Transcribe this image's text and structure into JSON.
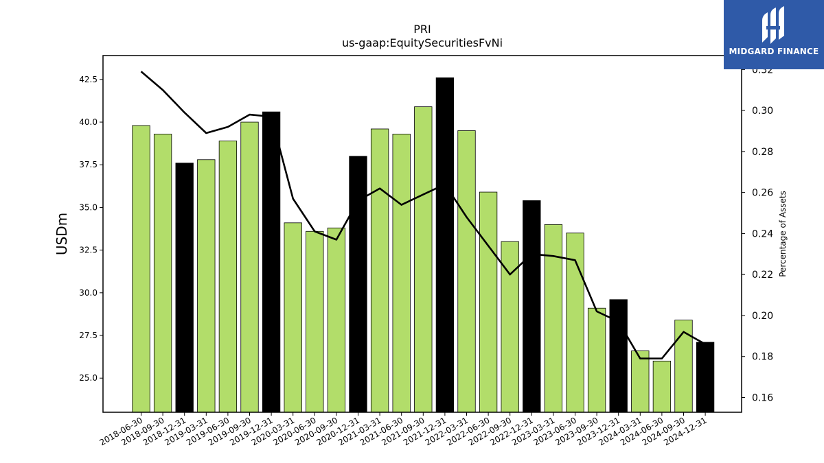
{
  "brand": {
    "name": "MIDGARD FINANCE",
    "icon": "midgard-logo-icon",
    "background": "#2f5aa8"
  },
  "chart_data": {
    "type": "bar",
    "title": "PRI",
    "subtitle": "us-gaap:EquitySecuritiesFvNi",
    "ylabel": "USDm",
    "ylabel_right": "Percentage of Assets",
    "ylim": [
      23.0,
      43.9
    ],
    "ylim_right": [
      0.1528,
      0.3268
    ],
    "yticks": [
      "25.0",
      "27.5",
      "30.0",
      "32.5",
      "35.0",
      "37.5",
      "40.0",
      "42.5"
    ],
    "yticks_right": [
      "0.16",
      "0.18",
      "0.20",
      "0.22",
      "0.24",
      "0.26",
      "0.28",
      "0.30",
      "0.32"
    ],
    "categories": [
      "2018-06-30",
      "2018-09-30",
      "2018-12-31",
      "2019-03-31",
      "2019-06-30",
      "2019-09-30",
      "2019-12-31",
      "2020-03-31",
      "2020-06-30",
      "2020-09-30",
      "2020-12-31",
      "2021-03-31",
      "2021-06-30",
      "2021-09-30",
      "2021-12-31",
      "2022-03-31",
      "2022-06-30",
      "2022-09-30",
      "2022-12-31",
      "2023-03-31",
      "2023-06-30",
      "2023-09-30",
      "2023-12-31",
      "2024-03-31",
      "2024-06-30",
      "2024-09-30",
      "2024-12-31"
    ],
    "values": [
      39.8,
      39.3,
      37.6,
      37.8,
      38.9,
      40.0,
      40.6,
      34.1,
      33.6,
      33.8,
      38.0,
      39.6,
      39.3,
      40.9,
      42.6,
      39.5,
      35.9,
      33.0,
      35.4,
      34.0,
      33.5,
      29.1,
      29.6,
      26.6,
      26.0,
      28.4,
      27.1
    ],
    "highlight": [
      false,
      false,
      true,
      false,
      false,
      false,
      true,
      false,
      false,
      false,
      true,
      false,
      false,
      false,
      true,
      false,
      false,
      false,
      true,
      false,
      false,
      false,
      true,
      false,
      false,
      false,
      true
    ],
    "bar_color": "#b2dd6a",
    "highlight_color": "#000000",
    "line_series": {
      "axis": "right",
      "color": "#000000",
      "values": [
        0.319,
        0.31,
        0.299,
        0.289,
        0.292,
        0.298,
        0.297,
        0.257,
        0.241,
        0.237,
        0.256,
        0.262,
        0.254,
        0.259,
        0.264,
        0.248,
        0.234,
        0.22,
        0.23,
        0.229,
        0.227,
        0.202,
        0.197,
        0.179,
        0.179,
        0.192,
        0.186
      ]
    },
    "grid": false,
    "legend": "none"
  }
}
